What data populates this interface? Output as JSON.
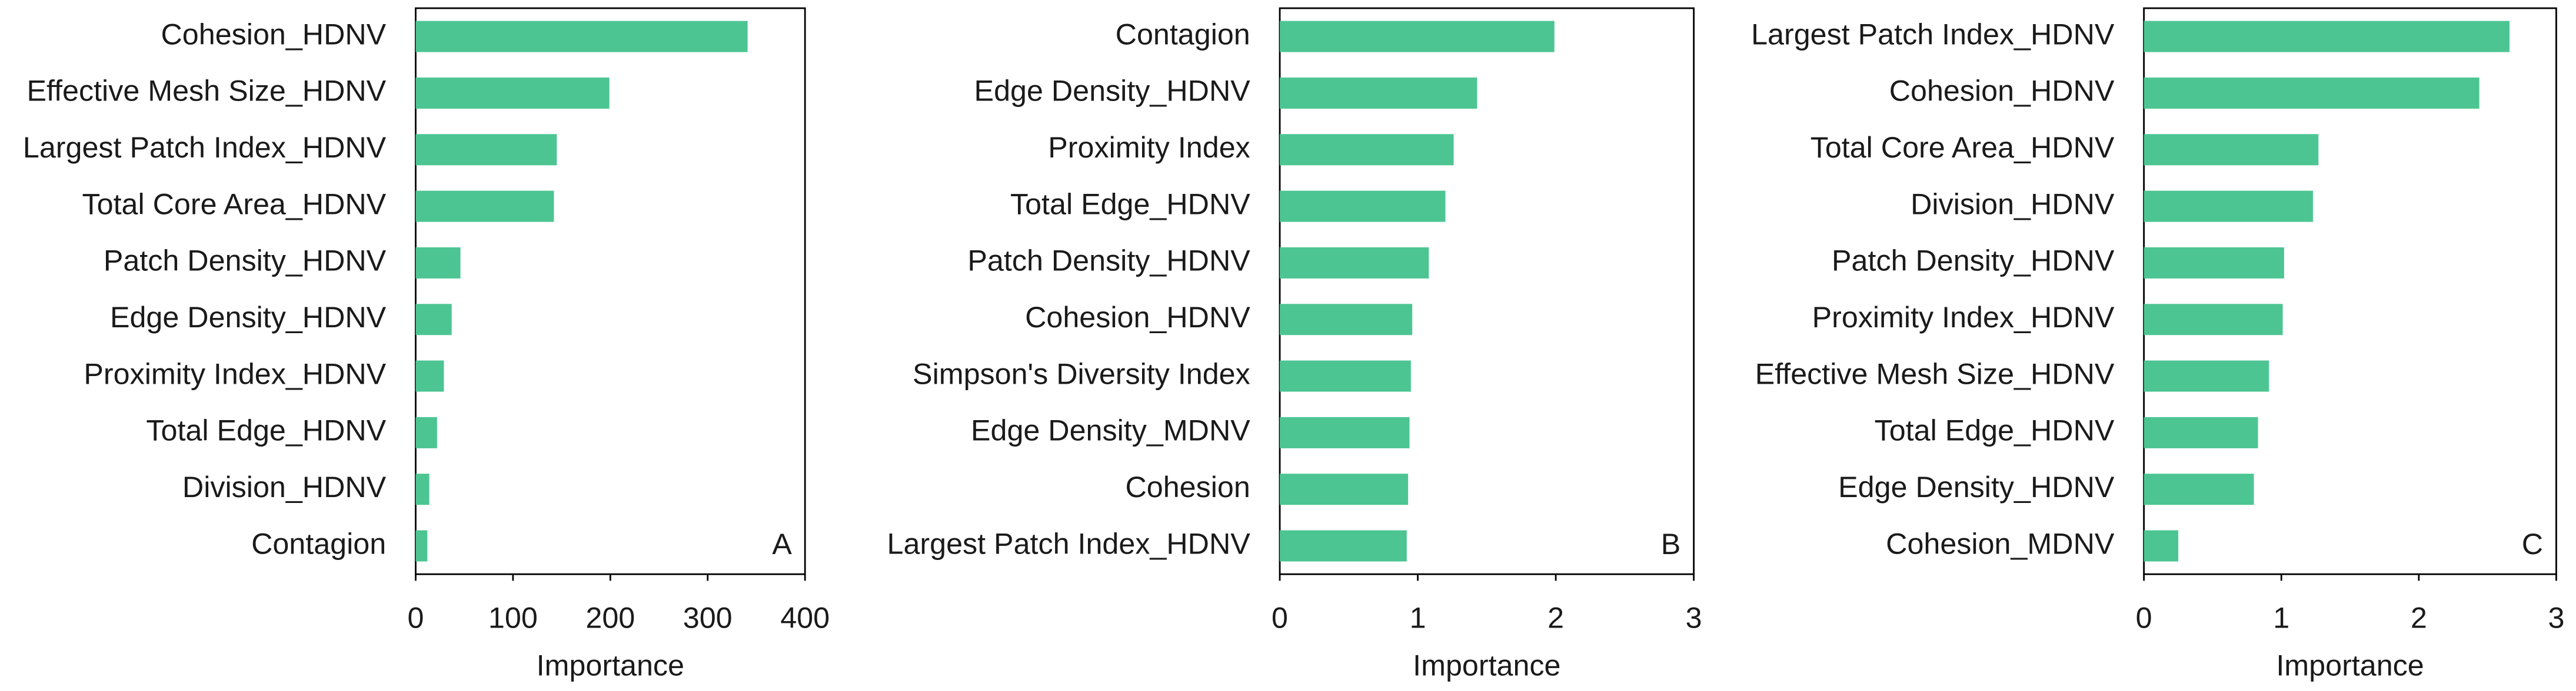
{
  "chart_data": [
    {
      "type": "barh",
      "annotation": "A",
      "xlabel": "Importance",
      "categories": [
        "Cohesion_HDNV",
        "Effective Mesh Size_HDNV",
        "Largest Patch Index_HDNV",
        "Total Core Area_HDNV",
        "Patch Density_HDNV",
        "Edge Density_HDNV",
        "Proximity Index_HDNV",
        "Total Edge_HDNV",
        "Division_HDNV",
        "Contagion"
      ],
      "values": [
        341,
        199,
        145,
        142,
        46,
        37,
        29,
        22,
        14,
        12
      ],
      "color": "#4dc593",
      "xlim": [
        0,
        400
      ],
      "xticks": [
        0,
        100,
        200,
        300,
        400
      ]
    },
    {
      "type": "barh",
      "annotation": "B",
      "xlabel": "Importance",
      "categories": [
        "Contagion",
        "Edge Density_HDNV",
        "Proximity Index",
        "Total Edge_HDNV",
        "Patch Density_HDNV",
        "Cohesion_HDNV",
        "Simpson's Diversity Index",
        "Edge Density_MDNV",
        "Cohesion",
        "Largest Patch Index_HDNV"
      ],
      "values": [
        1.99,
        1.43,
        1.26,
        1.2,
        1.08,
        0.96,
        0.95,
        0.94,
        0.93,
        0.92
      ],
      "color": "#4dc593",
      "xlim": [
        0,
        3
      ],
      "xticks": [
        0,
        1,
        2,
        3
      ]
    },
    {
      "type": "barh",
      "annotation": "C",
      "xlabel": "Importance",
      "categories": [
        "Largest Patch Index_HDNV",
        "Cohesion_HDNV",
        "Total Core Area_HDNV",
        "Division_HDNV",
        "Patch Density_HDNV",
        "Proximity Index_HDNV",
        "Effective Mesh Size_HDNV",
        "Total Edge_HDNV",
        "Edge Density_HDNV",
        "Cohesion_MDNV"
      ],
      "values": [
        2.66,
        2.44,
        1.27,
        1.23,
        1.02,
        1.01,
        0.91,
        0.83,
        0.8,
        0.25
      ],
      "color": "#4dc593",
      "xlim": [
        0,
        3
      ],
      "xticks": [
        0,
        1,
        2,
        3
      ]
    }
  ]
}
